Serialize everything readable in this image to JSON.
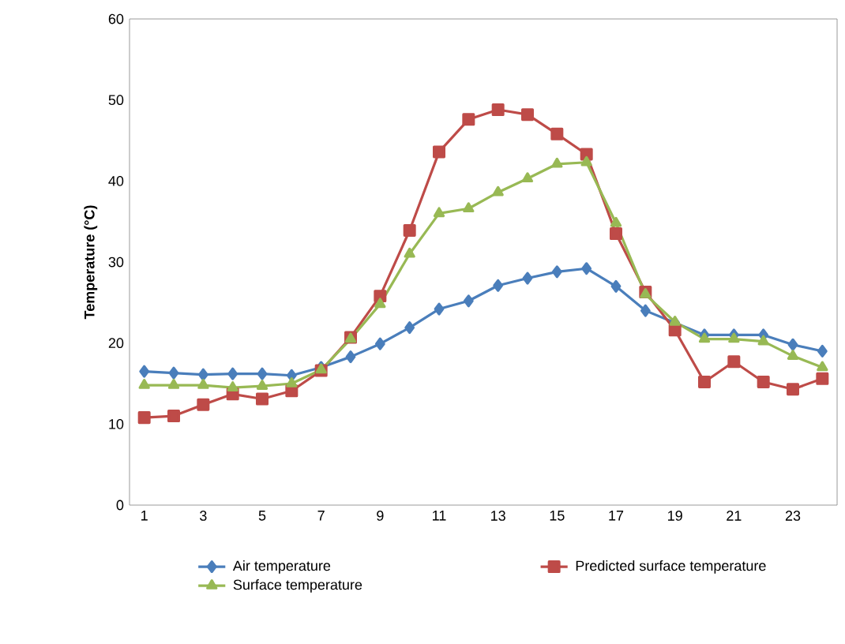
{
  "chart_data": {
    "type": "line",
    "ylabel": "Temperature (°C)",
    "categories": [
      "1",
      null,
      "3",
      null,
      "5",
      null,
      "7",
      null,
      "9",
      null,
      "11",
      null,
      "13",
      null,
      "15",
      null,
      "17",
      null,
      "19",
      null,
      "21",
      null,
      "23",
      null
    ],
    "ylim": [
      0,
      60
    ],
    "yticks": [
      0,
      10,
      20,
      30,
      40,
      50,
      60
    ],
    "grid": false,
    "legend": "bottom",
    "series": [
      {
        "name": "Air temperature",
        "color": "#4a7ebb",
        "marker": "diamond",
        "values": [
          16.5,
          16.3,
          16.1,
          16.2,
          16.2,
          16.0,
          17.0,
          18.3,
          19.9,
          21.9,
          24.2,
          25.2,
          27.1,
          28.0,
          28.8,
          29.2,
          27.0,
          24.0,
          22.5,
          21.0,
          21.0,
          21.0,
          19.8,
          19.0
        ]
      },
      {
        "name": "Predicted surface temperature",
        "color": "#be4b48",
        "marker": "square",
        "values": [
          10.8,
          11.0,
          12.4,
          13.7,
          13.1,
          14.1,
          16.6,
          20.7,
          25.8,
          33.9,
          43.6,
          47.6,
          48.8,
          48.2,
          45.8,
          43.3,
          33.5,
          26.3,
          21.6,
          15.2,
          17.7,
          15.2,
          14.3,
          15.6
        ]
      },
      {
        "name": "Surface temperature",
        "color": "#98b954",
        "marker": "triangle",
        "values": [
          14.8,
          14.8,
          14.8,
          14.5,
          14.7,
          15.0,
          16.7,
          20.5,
          24.8,
          31.0,
          36.0,
          36.6,
          38.6,
          40.3,
          42.1,
          42.3,
          34.8,
          26.0,
          22.6,
          20.5,
          20.5,
          20.2,
          18.4,
          17.0
        ]
      }
    ]
  }
}
